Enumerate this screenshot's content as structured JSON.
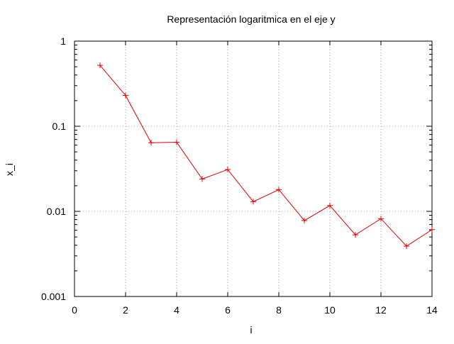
{
  "chart_data": {
    "type": "line",
    "title": "Representación logaritmica en el eje y",
    "xlabel": "i",
    "ylabel": "x_i",
    "xlim": [
      0,
      14
    ],
    "ylim": [
      0.001,
      1
    ],
    "yscale": "log",
    "grid": true,
    "x_ticks": [
      0,
      2,
      4,
      6,
      8,
      10,
      12,
      14
    ],
    "x_tick_labels": [
      "0",
      "2",
      "4",
      "6",
      "8",
      "10",
      "12",
      "14"
    ],
    "y_ticks": [
      0.001,
      0.01,
      0.1,
      1
    ],
    "y_tick_labels": [
      "0.001",
      "0.01",
      "0.1",
      "1"
    ],
    "marker": "plus",
    "colors": {
      "series": "#e00000",
      "grid": "#a0a0a0",
      "axis": "#000000"
    },
    "series": [
      {
        "x": [
          1,
          2,
          3,
          4,
          5,
          6,
          7,
          8,
          9,
          10,
          11,
          12,
          13,
          14
        ],
        "values": [
          0.52,
          0.23,
          0.064,
          0.065,
          0.024,
          0.031,
          0.013,
          0.018,
          0.0078,
          0.0117,
          0.0053,
          0.0082,
          0.0039,
          0.0061
        ]
      }
    ]
  }
}
